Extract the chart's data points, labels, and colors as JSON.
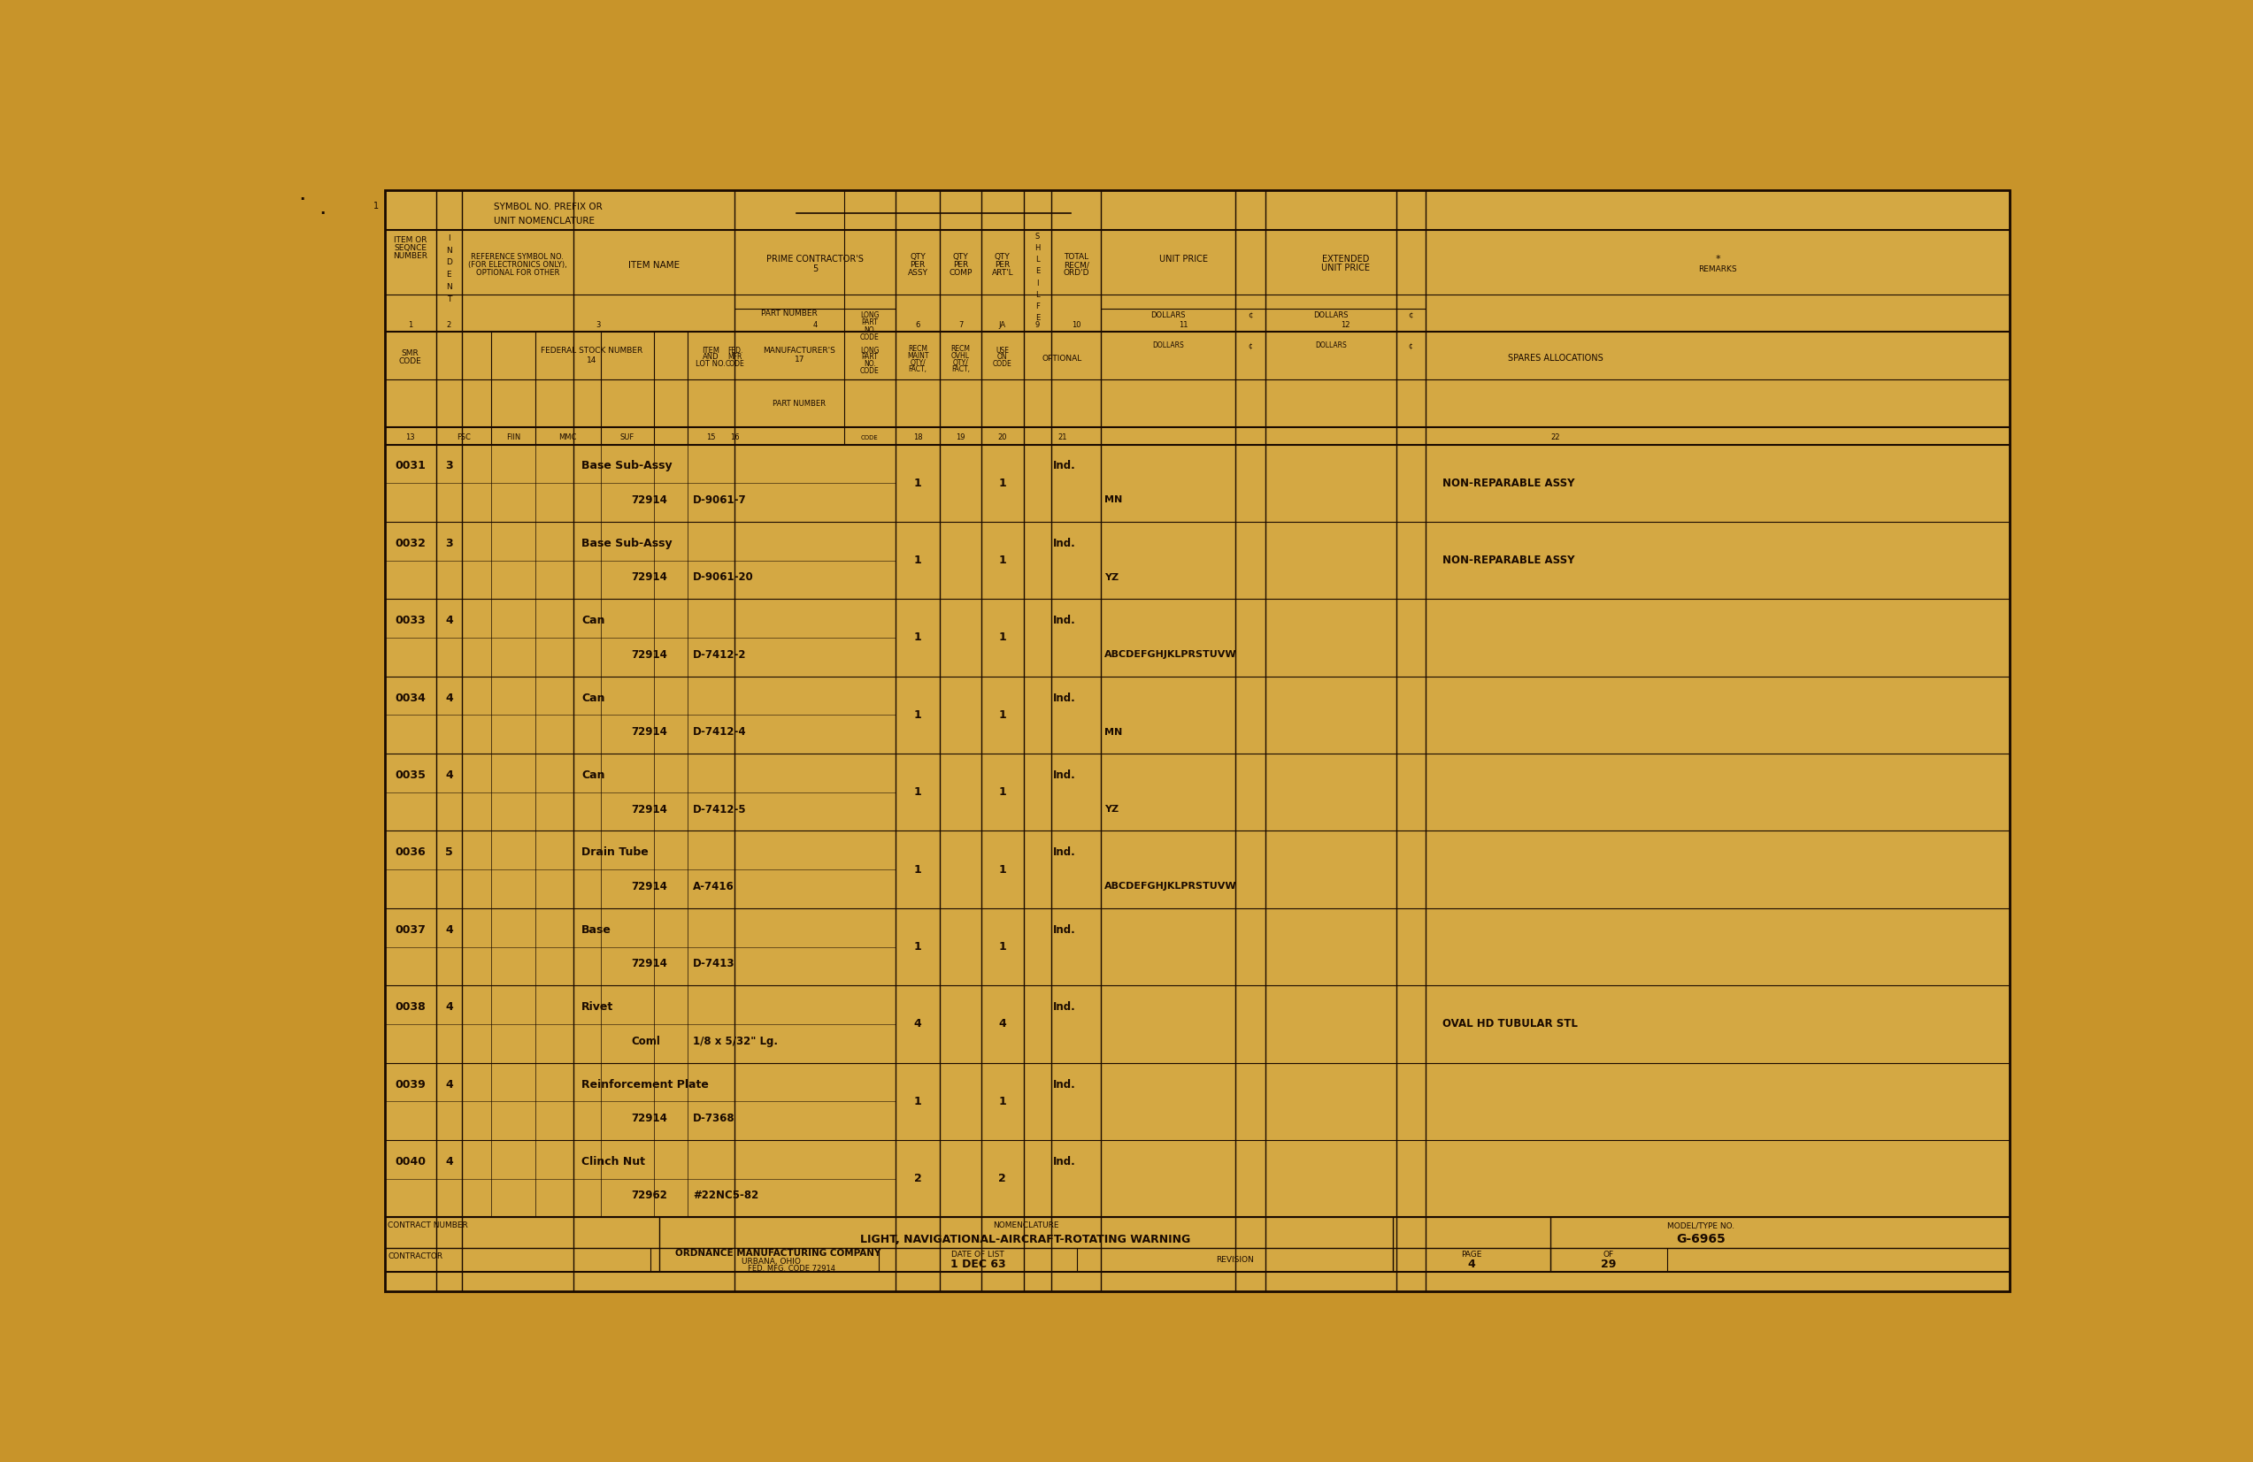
{
  "bg_color": "#C8942A",
  "form_bg": "#D4A843",
  "line_color": "#1a0a00",
  "text_color": "#1a0a00",
  "rows": [
    {
      "seq": "0031",
      "ident": "3",
      "item_name": "Base Sub-Assy",
      "mfr_code": "72914",
      "part_no": "D-9061-7",
      "qty_assy": "1",
      "qty_artl": "1",
      "recd": "Ind.",
      "spares": "MN",
      "remarks": "NON-REPARABLE ASSY"
    },
    {
      "seq": "0032",
      "ident": "3",
      "item_name": "Base Sub-Assy",
      "mfr_code": "72914",
      "part_no": "D-9061-20",
      "qty_assy": "1",
      "qty_artl": "1",
      "recd": "Ind.",
      "spares": "YZ",
      "remarks": "NON-REPARABLE ASSY"
    },
    {
      "seq": "0033",
      "ident": "4",
      "item_name": "Can",
      "mfr_code": "72914",
      "part_no": "D-7412-2",
      "qty_assy": "1",
      "qty_artl": "1",
      "recd": "Ind.",
      "spares": "ABCDEFGHJKLPRSTUVW",
      "remarks": ""
    },
    {
      "seq": "0034",
      "ident": "4",
      "item_name": "Can",
      "mfr_code": "72914",
      "part_no": "D-7412-4",
      "qty_assy": "1",
      "qty_artl": "1",
      "recd": "Ind.",
      "spares": "MN",
      "remarks": ""
    },
    {
      "seq": "0035",
      "ident": "4",
      "item_name": "Can",
      "mfr_code": "72914",
      "part_no": "D-7412-5",
      "qty_assy": "1",
      "qty_artl": "1",
      "recd": "Ind.",
      "spares": "YZ",
      "remarks": ""
    },
    {
      "seq": "0036",
      "ident": "5",
      "item_name": "Drain Tube",
      "mfr_code": "72914",
      "part_no": "A-7416",
      "qty_assy": "1",
      "qty_artl": "1",
      "recd": "Ind.",
      "spares": "ABCDEFGHJKLPRSTUVW",
      "remarks": ""
    },
    {
      "seq": "0037",
      "ident": "4",
      "item_name": "Base",
      "mfr_code": "72914",
      "part_no": "D-7413",
      "qty_assy": "1",
      "qty_artl": "1",
      "recd": "Ind.",
      "spares": "",
      "remarks": ""
    },
    {
      "seq": "0038",
      "ident": "4",
      "item_name": "Rivet",
      "mfr_code": "Coml",
      "part_no": "1/8 x 5/32\" Lg.",
      "qty_assy": "4",
      "qty_artl": "4",
      "recd": "Ind.",
      "spares": "",
      "remarks": "OVAL HD TUBULAR STL"
    },
    {
      "seq": "0039",
      "ident": "4",
      "item_name": "Reinforcement Plate",
      "mfr_code": "72914",
      "part_no": "D-7368",
      "qty_assy": "1",
      "qty_artl": "1",
      "recd": "Ind.",
      "spares": "",
      "remarks": ""
    },
    {
      "seq": "0040",
      "ident": "4",
      "item_name": "Clinch Nut",
      "mfr_code": "72962",
      "part_no": "#22NC5-82",
      "qty_assy": "2",
      "qty_artl": "2",
      "recd": "Ind.",
      "spares": "",
      "remarks": ""
    }
  ],
  "footer": {
    "nomenclature_val": "LIGHT, NAVIGATIONAL-AIRCRAFT-ROTATING WARNING",
    "model_val": "G-6965",
    "contractor_val": "ORDNANCE MANUFACTURING COMPANY",
    "city": "URBANA, OHIO",
    "fed_code_label": "FED. MFG. CODE 72914",
    "date_val": "1 DEC 63",
    "page_val": "4",
    "of_val": "29"
  }
}
